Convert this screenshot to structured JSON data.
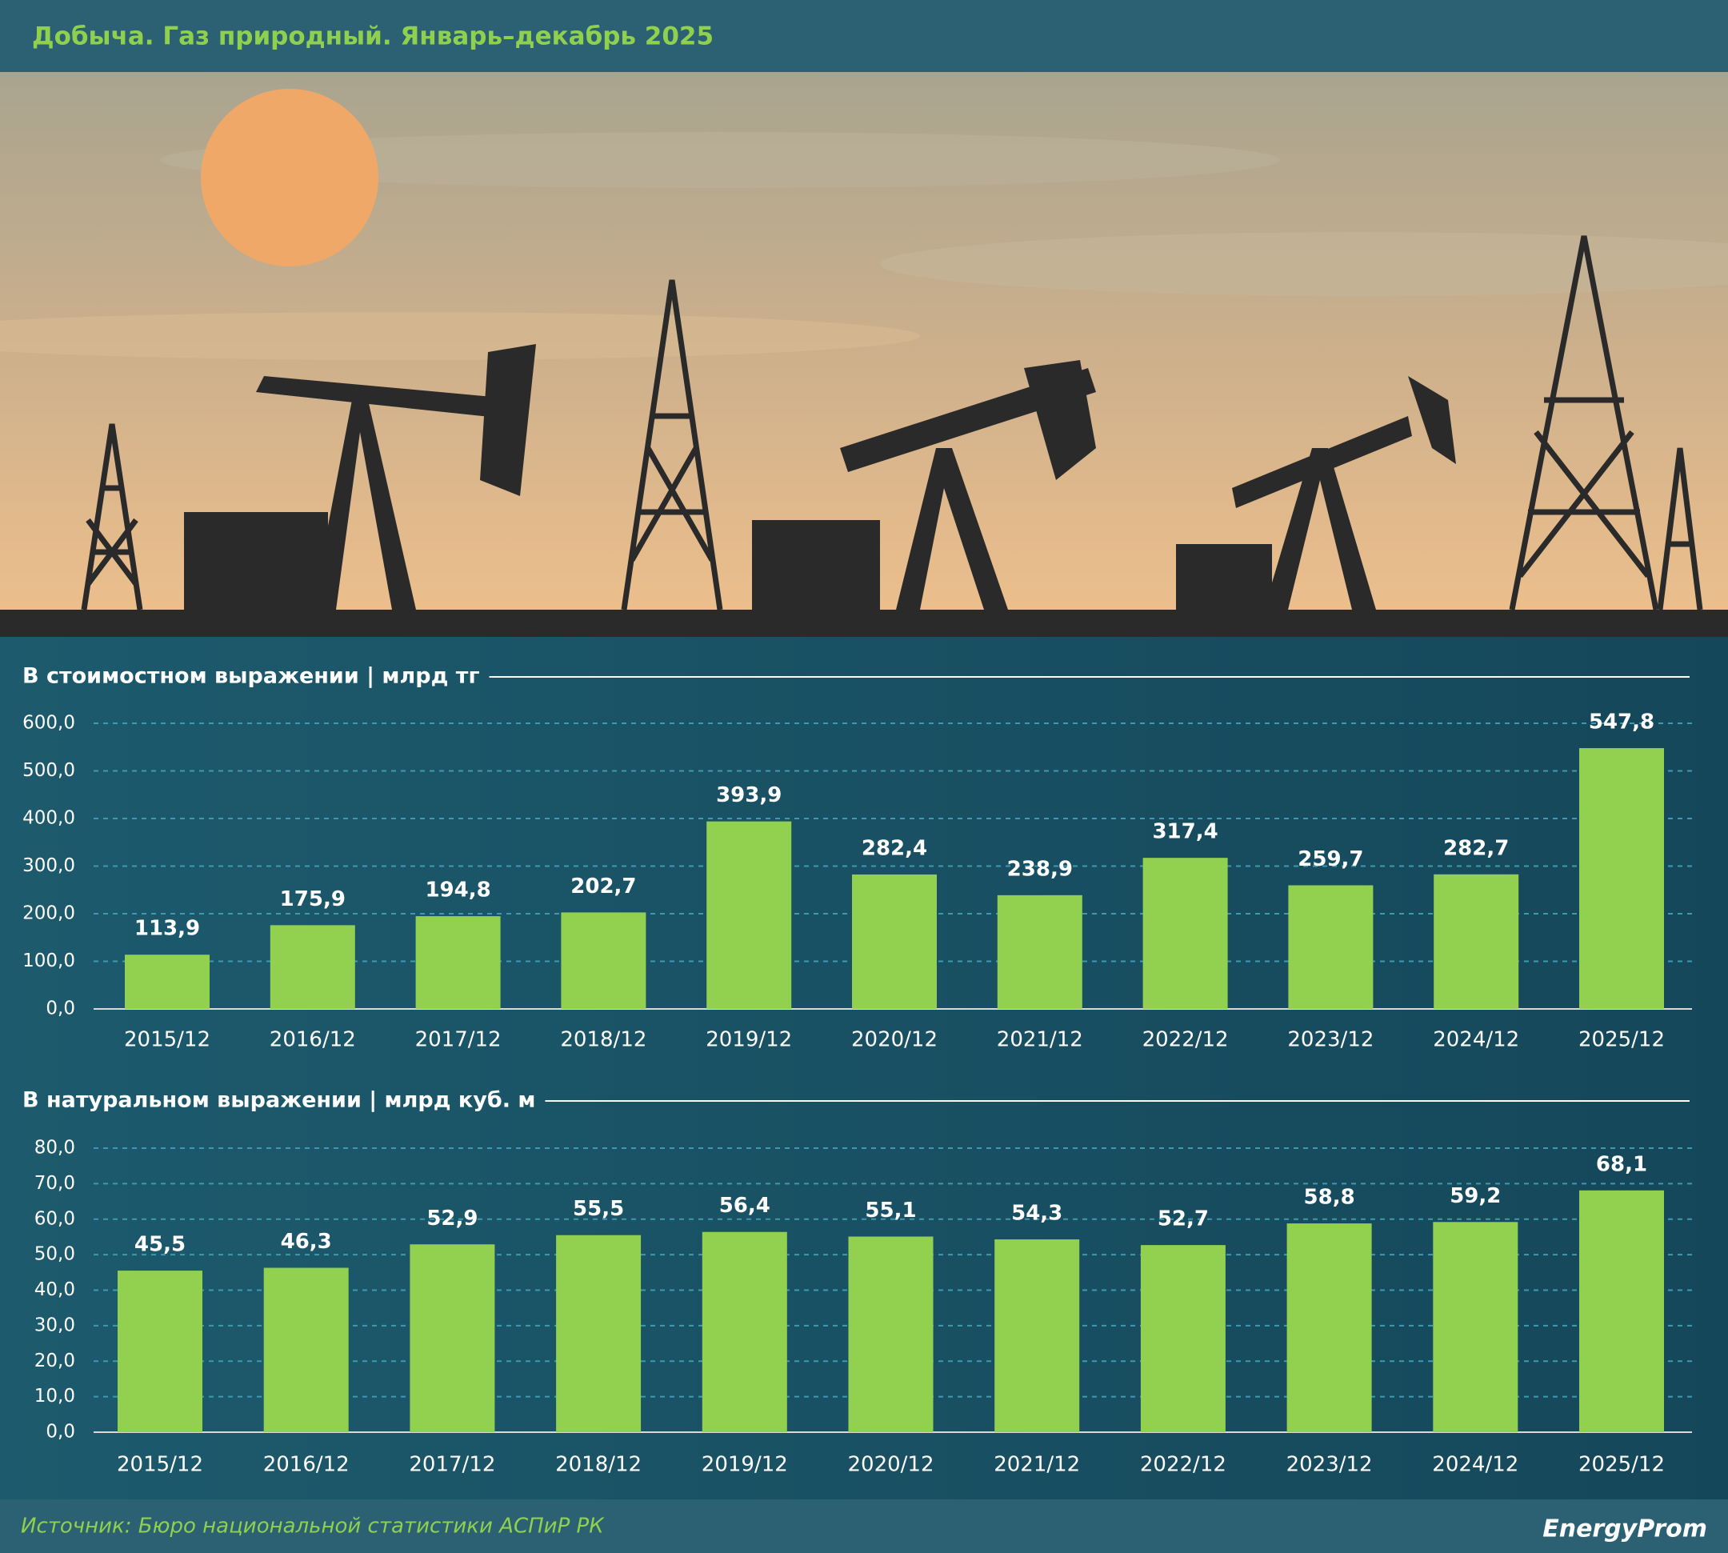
{
  "title": "Добыча. Газ природный. Январь–декабрь 2025",
  "source": "Источник: Бюро национальной статистики АСПиР РК",
  "logo": "EnergyProm",
  "chart_data": [
    {
      "type": "bar",
      "title": "В стоимостном выражении | млрд тг",
      "categories": [
        "2015/12",
        "2016/12",
        "2017/12",
        "2018/12",
        "2019/12",
        "2020/12",
        "2021/12",
        "2022/12",
        "2023/12",
        "2024/12",
        "2025/12"
      ],
      "values": [
        113.9,
        175.9,
        194.8,
        202.7,
        393.9,
        282.4,
        238.9,
        317.4,
        259.7,
        282.7,
        547.8
      ],
      "value_labels": [
        "113,9",
        "175,9",
        "194,8",
        "202,7",
        "393,9",
        "282,4",
        "238,9",
        "317,4",
        "259,7",
        "282,7",
        "547,8"
      ],
      "color": "#92d050",
      "grid": true,
      "ylim": [
        0,
        600
      ],
      "yticks": [
        {
          "value": 0,
          "label": "0,0"
        },
        {
          "value": 100,
          "label": "100,0"
        },
        {
          "value": 200,
          "label": "200,0"
        },
        {
          "value": 300,
          "label": "300,0"
        },
        {
          "value": 400,
          "label": "400,0"
        },
        {
          "value": 500,
          "label": "500,0"
        },
        {
          "value": 600,
          "label": "600,0"
        }
      ]
    },
    {
      "type": "bar",
      "title": "В натуральном выражении | млрд куб. м",
      "categories": [
        "2015/12",
        "2016/12",
        "2017/12",
        "2018/12",
        "2019/12",
        "2020/12",
        "2021/12",
        "2022/12",
        "2023/12",
        "2024/12",
        "2025/12"
      ],
      "values": [
        45.5,
        46.3,
        52.9,
        55.5,
        56.4,
        55.1,
        54.3,
        52.7,
        58.8,
        59.2,
        68.1
      ],
      "value_labels": [
        "45,5",
        "46,3",
        "52,9",
        "55,5",
        "56,4",
        "55,1",
        "54,3",
        "52,7",
        "58,8",
        "59,2",
        "68,1"
      ],
      "color": "#92d050",
      "grid": true,
      "ylim": [
        0,
        80
      ],
      "yticks": [
        {
          "value": 0,
          "label": "0,0"
        },
        {
          "value": 10,
          "label": "10,0"
        },
        {
          "value": 20,
          "label": "20,0"
        },
        {
          "value": 30,
          "label": "30,0"
        },
        {
          "value": 40,
          "label": "40,0"
        },
        {
          "value": 50,
          "label": "50,0"
        },
        {
          "value": 60,
          "label": "60,0"
        },
        {
          "value": 70,
          "label": "70,0"
        },
        {
          "value": 80,
          "label": "80,0"
        }
      ]
    }
  ]
}
